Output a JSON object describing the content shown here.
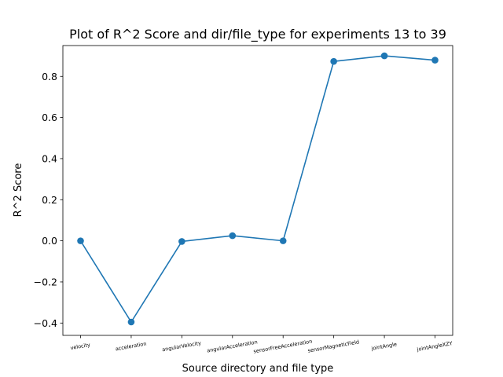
{
  "chart_data": {
    "type": "line",
    "title": "Plot of R^2 Score and dir/file_type for experiments 13 to 39",
    "xlabel": "Source directory and file type",
    "ylabel": "R^2 Score",
    "categories": [
      "velocity",
      "acceleration",
      "angularVelocity",
      "angularAcceleration",
      "sensorFreeAcceleration",
      "sensorMagneticField",
      "jointAngle",
      "jointAngleXZY"
    ],
    "series": [
      {
        "values": [
          0.0,
          -0.395,
          -0.003,
          0.025,
          0.0,
          0.873,
          0.9,
          0.879
        ],
        "color": "#1f77b4",
        "marker": "circle"
      }
    ],
    "yticks": [
      -0.4,
      -0.2,
      0.0,
      0.2,
      0.4,
      0.6,
      0.8
    ],
    "ytick_labels": [
      "−0.4",
      "−0.2",
      "0.0",
      "0.2",
      "0.4",
      "0.6",
      "0.8"
    ],
    "ylim": [
      -0.46,
      0.95
    ],
    "grid": false,
    "legend": false
  }
}
